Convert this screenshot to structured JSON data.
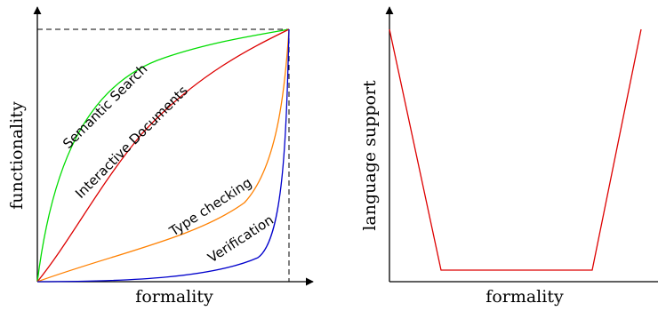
{
  "diagram": {
    "left_panel": {
      "xlabel": "formality",
      "ylabel": "functionality",
      "curves": [
        {
          "id": "semantic-search",
          "label": "Semantic Search",
          "color": "#00dd00"
        },
        {
          "id": "interactive-documents",
          "label": "Interactive Documents",
          "color": "#dd0000"
        },
        {
          "id": "type-checking",
          "label": "Type checking",
          "color": "#ff8000"
        },
        {
          "id": "verification",
          "label": "Verification",
          "color": "#0000cc"
        }
      ]
    },
    "right_panel": {
      "xlabel": "formality",
      "ylabel": "language support",
      "curve": {
        "id": "language-support",
        "color": "#dd0000"
      }
    }
  }
}
